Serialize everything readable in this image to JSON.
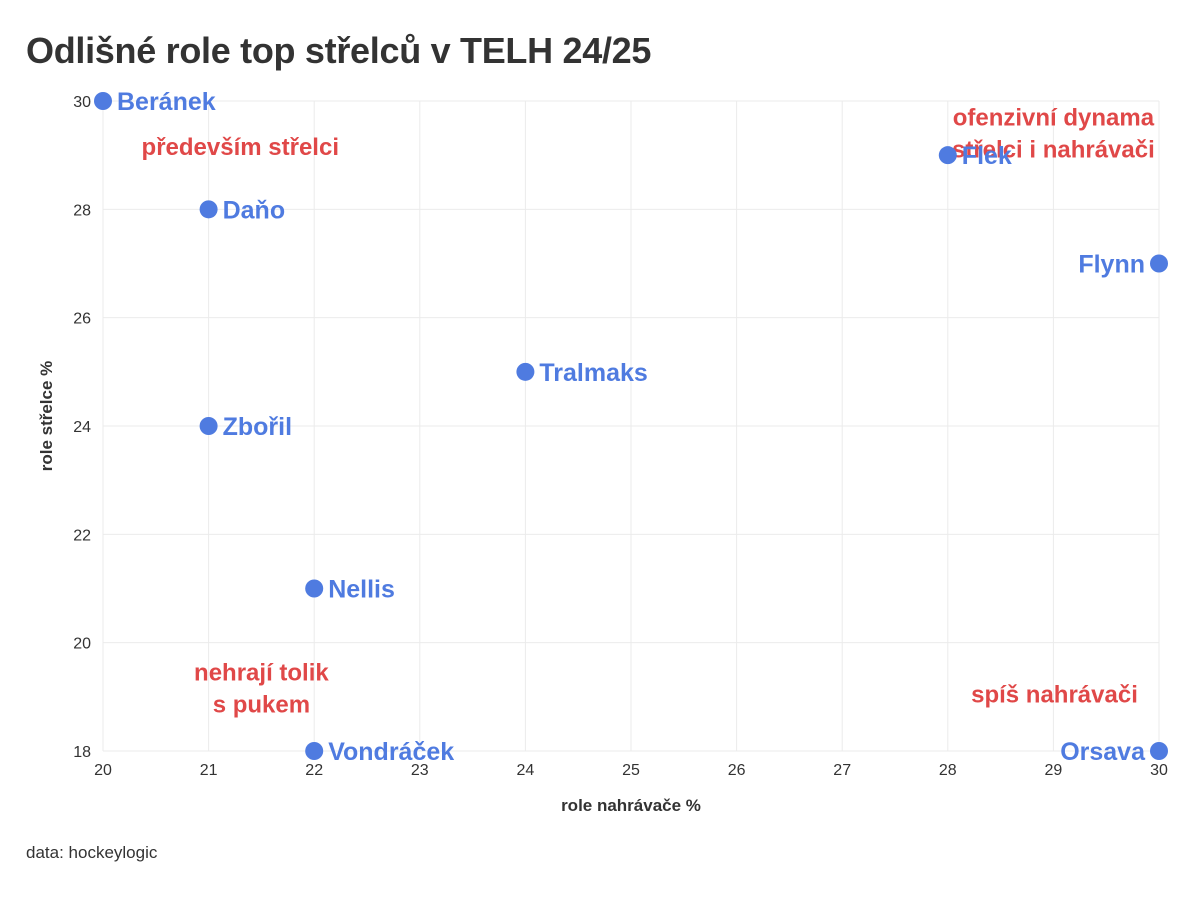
{
  "page": {
    "title": "Odlišné role top střelců v TELH 24/25",
    "source": "data: hockeylogic"
  },
  "colors": {
    "point": "#4f7be0",
    "annotation": "#e04848",
    "grid": "#ebebeb",
    "text": "#333333"
  },
  "chart_data": {
    "type": "scatter",
    "title": "Odlišné role top střelců v TELH 24/25",
    "xlabel": "role nahrávače %",
    "ylabel": "role střelce %",
    "xlim": [
      20,
      30
    ],
    "ylim": [
      18,
      30
    ],
    "x_ticks": [
      20,
      21,
      22,
      23,
      24,
      25,
      26,
      27,
      28,
      29,
      30
    ],
    "y_ticks": [
      18,
      20,
      22,
      24,
      26,
      28,
      30
    ],
    "grid": true,
    "points": [
      {
        "label": "Beránek",
        "x": 20,
        "y": 30,
        "label_side": "right"
      },
      {
        "label": "Daňo",
        "x": 21,
        "y": 28,
        "label_side": "right"
      },
      {
        "label": "Zbořil",
        "x": 21,
        "y": 24,
        "label_side": "right"
      },
      {
        "label": "Tralmaks",
        "x": 24,
        "y": 25,
        "label_side": "right"
      },
      {
        "label": "Nellis",
        "x": 22,
        "y": 21,
        "label_side": "right"
      },
      {
        "label": "Vondráček",
        "x": 22,
        "y": 18,
        "label_side": "right"
      },
      {
        "label": "Flek",
        "x": 28,
        "y": 29,
        "label_side": "right"
      },
      {
        "label": "Flynn",
        "x": 30,
        "y": 27,
        "label_side": "left"
      },
      {
        "label": "Orsava",
        "x": 30,
        "y": 18,
        "label_side": "left"
      }
    ],
    "annotations": [
      {
        "lines": [
          "především střelci"
        ],
        "x": 21.3,
        "y": 29.0,
        "anchor": "middle"
      },
      {
        "lines": [
          "ofenzivní dynama",
          "střelci i nahrávači"
        ],
        "x": 29.0,
        "y": 29.55,
        "anchor": "middle"
      },
      {
        "lines": [
          "nehrají tolik",
          "s pukem"
        ],
        "x": 21.5,
        "y": 19.3,
        "anchor": "middle"
      },
      {
        "lines": [
          "spíš nahrávači"
        ],
        "x": 29.8,
        "y": 18.9,
        "anchor": "end"
      }
    ]
  }
}
